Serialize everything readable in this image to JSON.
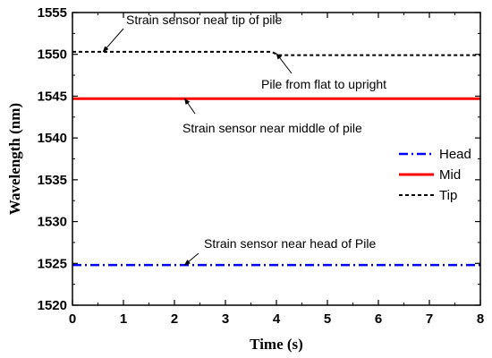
{
  "chart_data": {
    "type": "line",
    "xlabel": "Time (s)",
    "ylabel": "Wavelength (nm)",
    "xlim": [
      0,
      8
    ],
    "ylim": [
      1520,
      1555
    ],
    "xticks": [
      "0",
      "1",
      "2",
      "3",
      "4",
      "5",
      "6",
      "7",
      "8"
    ],
    "yticks": [
      "1520",
      "1525",
      "1530",
      "1535",
      "1540",
      "1545",
      "1550",
      "1555"
    ],
    "grid": false,
    "legend_position": "right",
    "series": [
      {
        "name": "Head",
        "color": "#0000ff",
        "style": "dash-dot",
        "x": [
          0,
          8
        ],
        "y": [
          1524.8,
          1524.8
        ]
      },
      {
        "name": "Mid",
        "color": "#ff0000",
        "style": "solid",
        "x": [
          0,
          8
        ],
        "y": [
          1544.7,
          1544.7
        ]
      },
      {
        "name": "Tip",
        "color": "#000000",
        "style": "dashed",
        "x": [
          0,
          3.9,
          4.05,
          8
        ],
        "y": [
          1550.3,
          1550.3,
          1549.9,
          1549.9
        ]
      }
    ],
    "annotations": [
      {
        "text": "Strain sensor near tip of pile",
        "point": [
          0.6,
          1550.3
        ]
      },
      {
        "text": "Pile from flat to upright",
        "point": [
          4.0,
          1550.1
        ]
      },
      {
        "text": "Strain sensor near middle of pile",
        "point": [
          2.2,
          1544.7
        ]
      },
      {
        "text": "Strain sensor near head of Pile",
        "point": [
          2.2,
          1524.8
        ]
      }
    ]
  }
}
